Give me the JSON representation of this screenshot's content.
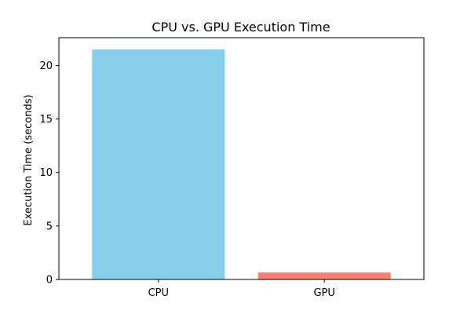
{
  "chart_data": {
    "type": "bar",
    "title": "CPU vs. GPU Execution Time",
    "xlabel": "",
    "ylabel": "Execution Time (seconds)",
    "categories": [
      "CPU",
      "GPU"
    ],
    "values": [
      21.5,
      0.65
    ],
    "colors": [
      "#87CEEB",
      "#FA8072"
    ],
    "ylim": [
      0,
      22.6
    ],
    "yticks": [
      0,
      5,
      10,
      15,
      20
    ],
    "grid": false
  }
}
